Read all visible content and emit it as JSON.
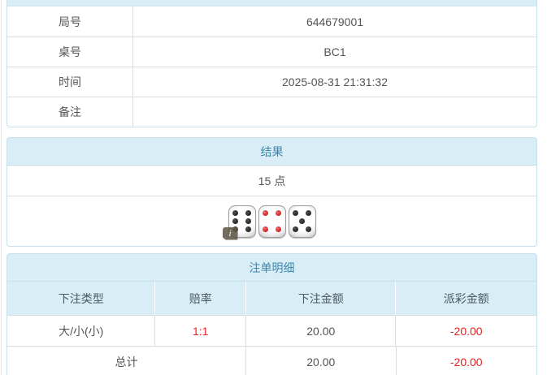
{
  "colors": {
    "panel_header_bg": "#d9edf7",
    "panel_header_text": "#3a87ad",
    "panel_border": "#c5e1ed",
    "row_line": "#dcdcdc",
    "text": "#555555",
    "negative_red": "#e62222",
    "die_pip_black": "#262626",
    "die_pip_red": "#cc2327",
    "info_badge_bg": "#5f5949"
  },
  "info_panel": {
    "rows": [
      {
        "label": "局号",
        "value": "644679001"
      },
      {
        "label": "桌号",
        "value": "BC1"
      },
      {
        "label": "时间",
        "value": "2025-08-31 21:31:32"
      },
      {
        "label": "备注",
        "value": ""
      }
    ]
  },
  "result_panel": {
    "title": "结果",
    "points": "15 点",
    "dice": [
      {
        "pips": 6,
        "pip_color": "black"
      },
      {
        "pips": 4,
        "pip_color": "red"
      },
      {
        "pips": 5,
        "pip_color": "black"
      }
    ],
    "info_icon": "i"
  },
  "bets_panel": {
    "title": "注单明细",
    "columns": [
      "下注类型",
      "赔率",
      "下注金额",
      "派彩金额"
    ],
    "rows": [
      {
        "type": "大/小(小)",
        "odds": "1:1",
        "bet": "20.00",
        "payout": "-20.00"
      }
    ],
    "total": {
      "label": "总计",
      "bet": "20.00",
      "payout": "-20.00"
    }
  }
}
